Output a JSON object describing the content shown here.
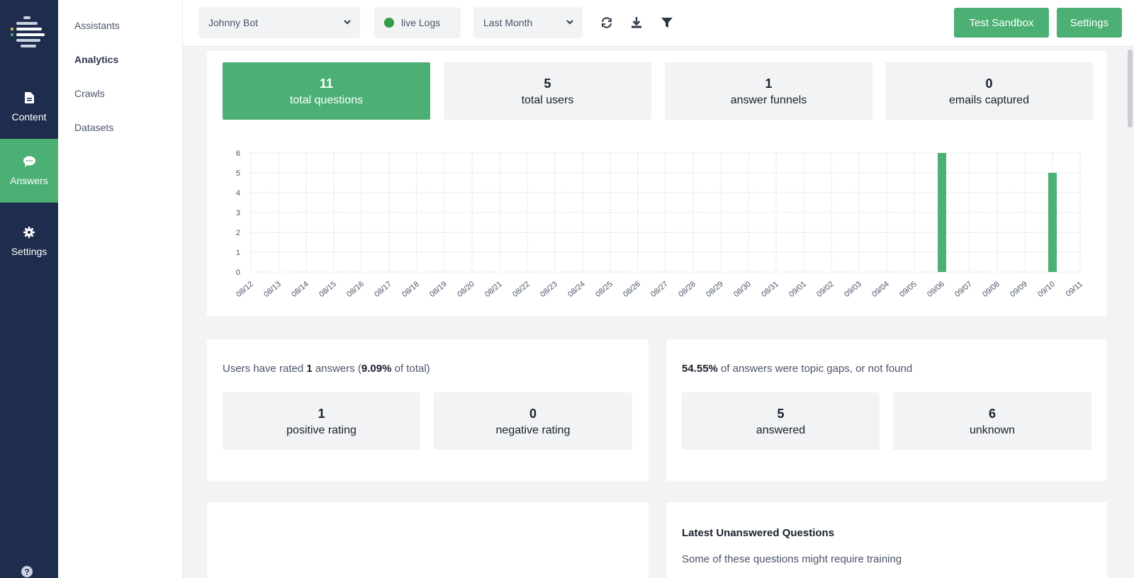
{
  "sidebar": {
    "items": [
      {
        "label": "Content",
        "icon": "document-icon"
      },
      {
        "label": "Answers",
        "icon": "chat-bubble-icon",
        "active": true
      },
      {
        "label": "Settings",
        "icon": "gear-icon"
      }
    ]
  },
  "subnav": {
    "items": [
      {
        "label": "Assistants"
      },
      {
        "label": "Analytics",
        "active": true
      },
      {
        "label": "Crawls"
      },
      {
        "label": "Datasets"
      }
    ]
  },
  "topbar": {
    "bot_select": "Johnny Bot",
    "live_logs": "live Logs",
    "period_select": "Last Month",
    "test_sandbox": "Test Sandbox",
    "settings": "Settings"
  },
  "stats": [
    {
      "value": "11",
      "label": "total questions"
    },
    {
      "value": "5",
      "label": "total users"
    },
    {
      "value": "1",
      "label": "answer funnels"
    },
    {
      "value": "0",
      "label": "emails captured"
    }
  ],
  "ratings": {
    "prefix": "Users have rated ",
    "count": "1",
    "middle": " answers (",
    "pct": "9.09%",
    "suffix": " of total)",
    "positive": {
      "value": "1",
      "label": "positive rating"
    },
    "negative": {
      "value": "0",
      "label": "negative rating"
    }
  },
  "gaps": {
    "pct": "54.55%",
    "text": " of answers were topic gaps, or not found",
    "answered": {
      "value": "5",
      "label": "answered"
    },
    "unknown": {
      "value": "6",
      "label": "unknown"
    }
  },
  "unanswered": {
    "title": "Latest Unanswered Questions",
    "subtitle": "Some of these questions might require training"
  },
  "colors": {
    "accent": "#4caf74",
    "rail": "#1e2d4d"
  },
  "chart_data": {
    "type": "bar",
    "categories": [
      "08/12",
      "08/13",
      "08/14",
      "08/15",
      "08/16",
      "08/17",
      "08/18",
      "08/19",
      "08/20",
      "08/21",
      "08/22",
      "08/23",
      "08/24",
      "08/25",
      "08/26",
      "08/27",
      "08/28",
      "08/29",
      "08/30",
      "08/31",
      "09/01",
      "09/02",
      "09/03",
      "09/04",
      "09/05",
      "09/06",
      "09/07",
      "09/08",
      "09/09",
      "09/10",
      "09/11"
    ],
    "values": [
      0,
      0,
      0,
      0,
      0,
      0,
      0,
      0,
      0,
      0,
      0,
      0,
      0,
      0,
      0,
      0,
      0,
      0,
      0,
      0,
      0,
      0,
      0,
      0,
      0,
      6,
      0,
      0,
      0,
      5,
      0
    ],
    "yticks": [
      0,
      1,
      2,
      3,
      4,
      5,
      6
    ],
    "ylim": [
      0,
      6
    ],
    "grid": true,
    "color": "#4caf74"
  }
}
